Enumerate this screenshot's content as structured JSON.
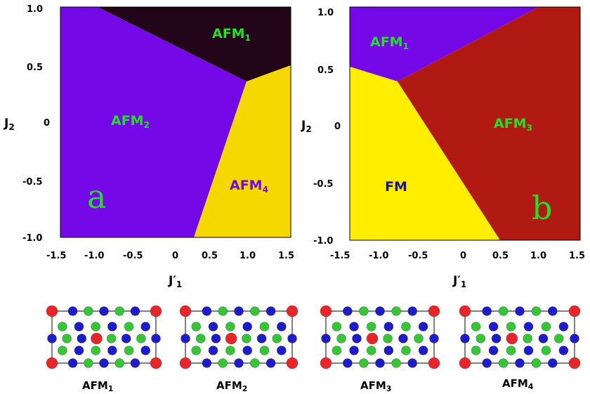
{
  "panels": [
    {
      "letter": "a",
      "x_label": "J′",
      "x_label_sub": "1",
      "y_label": "J",
      "y_label_sub": "2",
      "x_ticks": [
        "-1.5",
        "-1.0",
        "-0.5",
        "0",
        "0.5",
        "1.0",
        "1.5"
      ],
      "y_ticks": [
        "1.0",
        "0.5",
        "0",
        "-0.5",
        "-1.0"
      ],
      "regions": [
        {
          "phase": "AFM1",
          "color": "#230519",
          "label": "AFM",
          "sub": "1",
          "label_color": "#22e022"
        },
        {
          "phase": "AFM2",
          "color": "#7508e6",
          "label": "AFM",
          "sub": "2",
          "label_color": "#22e022"
        },
        {
          "phase": "AFM4",
          "color": "#f5d800",
          "label": "AFM",
          "sub": "4",
          "label_color": "#7508e6"
        }
      ]
    },
    {
      "letter": "b",
      "x_label": "J′",
      "x_label_sub": "1",
      "y_label": "J",
      "y_label_sub": "2",
      "x_ticks": [
        "-1.5",
        "-1.0",
        "-0.5",
        "0",
        "0.5",
        "1.0",
        "1.5"
      ],
      "y_ticks": [
        "1.0",
        "0.5",
        "0",
        "-0.5",
        "-1.0"
      ],
      "regions": [
        {
          "phase": "AFM1",
          "color": "#7508e6",
          "label": "AFM",
          "sub": "1",
          "label_color": "#22e022"
        },
        {
          "phase": "FM",
          "color": "#ffee00",
          "label": "FM",
          "sub": "",
          "label_color": "#14148c"
        },
        {
          "phase": "AFM3",
          "color": "#b01a12",
          "label": "AFM",
          "sub": "3",
          "label_color": "#22e022"
        }
      ]
    }
  ],
  "structures": [
    {
      "label": "AFM",
      "sub": "1"
    },
    {
      "label": "AFM",
      "sub": "2"
    },
    {
      "label": "AFM",
      "sub": "3"
    },
    {
      "label": "AFM",
      "sub": "4"
    }
  ],
  "atom_colors": {
    "red": "#e8262a",
    "green": "#34c634",
    "blue": "#1c1ccc"
  }
}
